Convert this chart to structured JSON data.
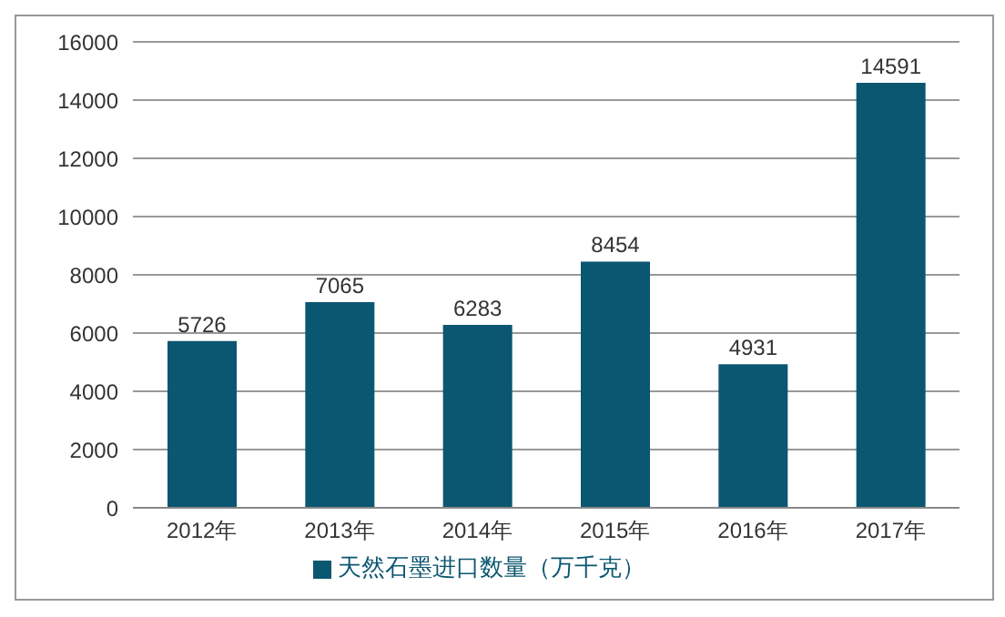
{
  "chart_data": {
    "type": "bar",
    "categories": [
      "2012年",
      "2013年",
      "2014年",
      "2015年",
      "2016年",
      "2017年"
    ],
    "series": [
      {
        "name": "天然石墨进口数量（万千克）",
        "color": "#0b5670",
        "values": [
          5726,
          7065,
          6283,
          8454,
          4931,
          14591
        ]
      }
    ],
    "ylim": [
      0,
      16000
    ],
    "yticks": [
      0,
      2000,
      4000,
      6000,
      8000,
      10000,
      12000,
      14000,
      16000
    ],
    "grid": "y",
    "legend": "bottom",
    "data_labels": true
  }
}
